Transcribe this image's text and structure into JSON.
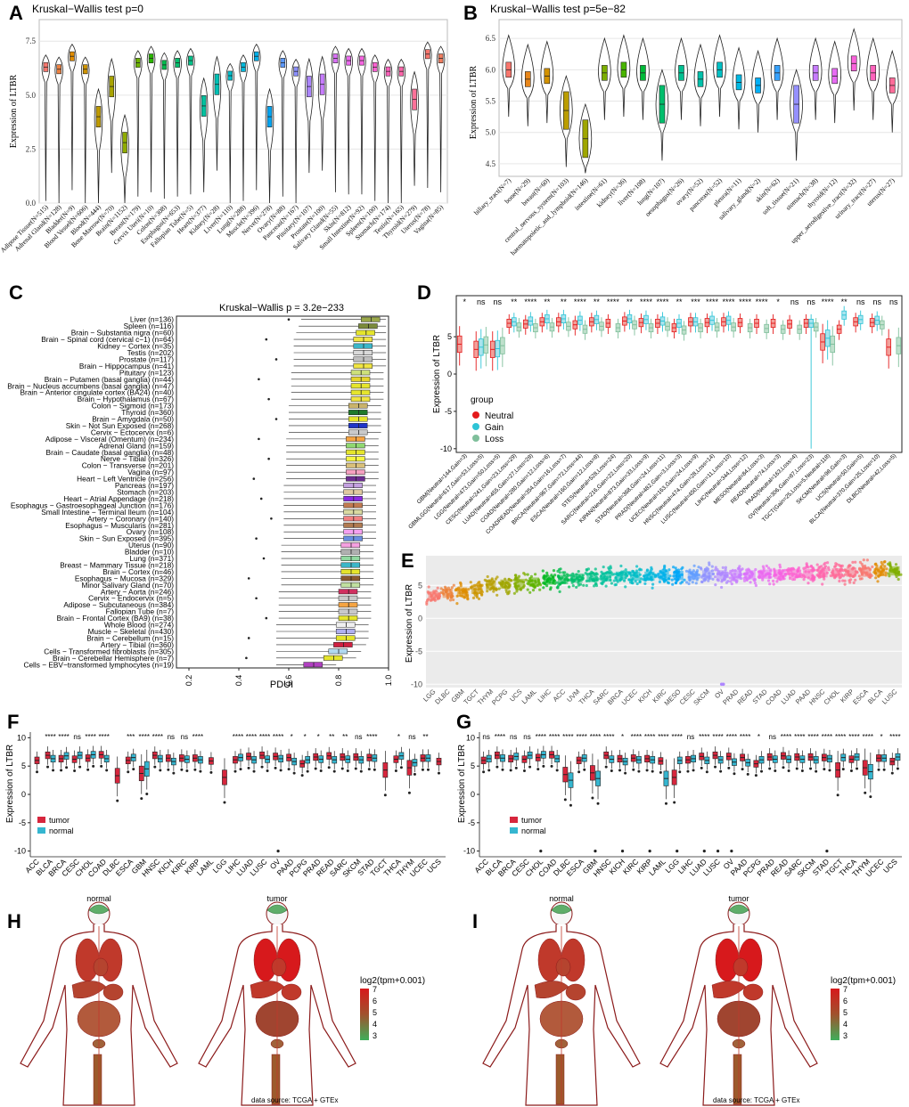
{
  "panels": {
    "A": {
      "letter": "A",
      "title": "Kruskal−Wallis test p=0",
      "ylabel": "Expression of LTBR",
      "ylim": [
        0,
        8.5
      ],
      "yticks": [
        "0.0",
        "2.5",
        "5.0",
        "7.5"
      ]
    },
    "B": {
      "letter": "B",
      "title": "Kruskal−Wallis test p=5e−82",
      "ylabel": "Expression of LTBR",
      "ylim": [
        4.3,
        6.8
      ],
      "yticks": [
        "4.5",
        "5.0",
        "5.5",
        "6.0",
        "6.5"
      ]
    },
    "C": {
      "letter": "C",
      "title": "Kruskal−Wallis p = 3.2e−233",
      "xlabel": "PDUI",
      "xlim": [
        0.15,
        1.0
      ],
      "xticks": [
        "0.2",
        "0.4",
        "0.6",
        "0.8",
        "1.0"
      ]
    },
    "D": {
      "letter": "D",
      "ylabel": "Expression of LTBR",
      "ylim": [
        -10,
        10
      ],
      "yticks": [
        "-10",
        "-5",
        "0",
        "5"
      ],
      "legend_title": "group",
      "legend_items": [
        "Neutral",
        "Gain",
        "Loss"
      ],
      "colors": [
        "#e41a1c",
        "#2ec4d6",
        "#7fbf9b"
      ]
    },
    "E": {
      "letter": "E",
      "ylabel": "Expression of LTBR",
      "ylim": [
        -10.5,
        9.5
      ],
      "yticks": [
        "-10",
        "-5",
        "0",
        "5"
      ]
    },
    "F": {
      "letter": "F",
      "ylabel": "Expression of LTBR",
      "ylim": [
        -11,
        11
      ],
      "yticks": [
        "-10",
        "-5",
        "0",
        "5",
        "10"
      ],
      "legend_items": [
        "tumor",
        "normal"
      ],
      "colors": [
        "#d7263d",
        "#35b6d0"
      ]
    },
    "G": {
      "letter": "G",
      "ylabel": "Expression of LTBR",
      "ylim": [
        -11,
        11
      ],
      "yticks": [
        "-10",
        "-5",
        "0",
        "5",
        "10"
      ],
      "legend_items": [
        "tumor",
        "normal"
      ],
      "colors": [
        "#d7263d",
        "#35b6d0"
      ]
    },
    "H": {
      "letter": "H",
      "normal_label": "normal",
      "tumor_label": "tumor",
      "legend_title": "log2(tpm+0.001)",
      "legend_ticks": [
        "7",
        "6",
        "5",
        "4",
        "3"
      ],
      "source": "data source: TCGA + GTEx"
    },
    "I": {
      "letter": "I",
      "normal_label": "normal",
      "tumor_label": "tumor",
      "legend_title": "log2(tpm+0.001)",
      "legend_ticks": [
        "7",
        "6",
        "5",
        "4",
        "3"
      ],
      "source": "data source: TCGA + GTEx"
    }
  },
  "chart_data": [
    {
      "panel": "A",
      "type": "violin",
      "title": "Kruskal−Wallis test p=0",
      "ylabel": "Expression of LTBR",
      "ylim": [
        0,
        8.5
      ],
      "categories": [
        "Adipose Tissue(N=515)",
        "Adrenal Gland(N=128)",
        "Bladder(N=9)",
        "Blood Vessel(N=606)",
        "Blood(N=444)",
        "Bone Marrow(N=70)",
        "Brain(N=1152)",
        "Breast(N=179)",
        "Cervix Uteri(N=10)",
        "Colon(N=308)",
        "Esophagus(N=653)",
        "Fallopian Tube(N=5)",
        "Heart(N=377)",
        "Kidney(N=28)",
        "Liver(N=110)",
        "Lung(N=288)",
        "Muscle(N=396)",
        "Nerve(N=278)",
        "Ovary(N=88)",
        "Pancreas(N=167)",
        "Pituitary(N=107)",
        "Prostate(N=100)",
        "Salivary Gland(N=55)",
        "Skin(N=812)",
        "Small Intestine(N=92)",
        "Spleen(N=100)",
        "Stomach(N=174)",
        "Testis(N=165)",
        "Thyroid(N=279)",
        "Uterus(N=78)",
        "Vagina(N=85)"
      ],
      "medians": [
        6.3,
        6.2,
        6.8,
        6.2,
        4.0,
        5.4,
        2.8,
        6.5,
        6.7,
        6.4,
        6.5,
        6.6,
        4.5,
        5.5,
        5.9,
        6.3,
        6.8,
        4.0,
        6.5,
        6.1,
        5.4,
        5.5,
        6.7,
        6.6,
        6.6,
        6.3,
        6.1,
        6.1,
        4.8,
        6.9,
        6.7
      ],
      "colors": [
        "#f8766d",
        "#ed8141",
        "#e08b00",
        "#d09400",
        "#bf9b00",
        "#a9a400",
        "#8fab00",
        "#6bb100",
        "#2ab700",
        "#00bb4e",
        "#00be6c",
        "#00c088",
        "#00c19f",
        "#00c0b5",
        "#00bdc9",
        "#00b7da",
        "#00afe8",
        "#00a5f3",
        "#5c99fb",
        "#8b8fff",
        "#ab85ff",
        "#c77cff",
        "#dc71fa",
        "#ec69ef",
        "#f763e0",
        "#fd61d1",
        "#ff62bc",
        "#ff65aa",
        "#fc7198",
        "#f8766d",
        "#f07d5f"
      ]
    },
    {
      "panel": "B",
      "type": "violin",
      "title": "Kruskal−Wallis test p=5e−82",
      "ylabel": "Expression of LTBR",
      "ylim": [
        4.3,
        6.8
      ],
      "categories": [
        "biliary_tract(N=7)",
        "bone(N=29)",
        "breast(N=60)",
        "central_nervous_system(N=103)",
        "haematopoietic_and_lymphoid(N=146)",
        "intestine(N=61)",
        "kidney(N=36)",
        "liver(N=108)",
        "lung(N=107)",
        "oesophagus(N=26)",
        "ovary(N=52)",
        "pancreas(N=52)",
        "pleura(N=11)",
        "salivary_gland(N=2)",
        "skin(N=62)",
        "soft_tissue(N=21)",
        "stomach(N=38)",
        "thyroid(N=12)",
        "upper_aerodigestive_tract(N=32)",
        "urinary_tract(N=27)",
        "uterus(N=27)"
      ],
      "medians": [
        6.0,
        5.85,
        5.9,
        5.35,
        4.9,
        5.95,
        6.0,
        5.95,
        5.45,
        5.95,
        5.85,
        6.0,
        5.8,
        5.75,
        5.95,
        5.45,
        5.95,
        5.9,
        6.1,
        5.95,
        5.75
      ],
      "colors": [
        "#f8766d",
        "#e7861a",
        "#d39200",
        "#bb9d00",
        "#9fa600",
        "#7cae00",
        "#49b500",
        "#00ba38",
        "#00be6c",
        "#00c091",
        "#00c1ab",
        "#00bfc4",
        "#00b9e3",
        "#00b0f6",
        "#35a2ff",
        "#9590ff",
        "#c77cff",
        "#e76bf3",
        "#fa62db",
        "#ff62bc",
        "#ff6c99"
      ]
    },
    {
      "panel": "C",
      "type": "boxplot-horizontal",
      "title": "Kruskal−Wallis p = 3.2e−233",
      "xlabel": "PDUI",
      "xlim": [
        0.15,
        1.0
      ],
      "categories": [
        "Liver (n=136)",
        "Spleen (n=116)",
        "Brain − Substantia nigra (n=60)",
        "Brain − Spinal cord (cervical c−1) (n=64)",
        "Kidney − Cortex (n=35)",
        "Testis (n=202)",
        "Prostate (n=117)",
        "Brain − Hippocampus (n=41)",
        "Pituitary (n=123)",
        "Brain − Putamen (basal ganglia) (n=44)",
        "Brain − Nucleus accumbens (basal ganglia) (n=47)",
        "Brain − Anterior cingulate cortex (BA24) (n=40)",
        "Brain − Hypothalamus (n=67)",
        "Colon − Sigmoid (n=173)",
        "Thyroid (n=360)",
        "Brain − Amygdala (n=50)",
        "Skin − Not Sun Exposed (n=268)",
        "Cervix − Ectocervix (n=6)",
        "Adipose − Visceral (Omentum) (n=234)",
        "Adrenal Gland (n=159)",
        "Brain − Caudate (basal ganglia) (n=48)",
        "Nerve − Tibial (n=326)",
        "Colon − Transverse (n=201)",
        "Vagina (n=97)",
        "Heart − Left Ventricle (n=256)",
        "Pancreas (n=197)",
        "Stomach (n=203)",
        "Heart − Atrial Appendage (n=218)",
        "Esophagus − Gastroesophageal Junction (n=176)",
        "Small Intestine − Terminal Ileum (n=104)",
        "Artery − Coronary (n=140)",
        "Esophagus − Muscularis (n=281)",
        "Ovary (n=108)",
        "Skin − Sun Exposed (n=395)",
        "Uterus (n=90)",
        "Bladder (n=10)",
        "Lung (n=371)",
        "Breast − Mammary Tissue (n=218)",
        "Brain − Cortex (n=46)",
        "Esophagus − Mucosa (n=329)",
        "Minor Salivary Gland (n=70)",
        "Artery − Aorta (n=246)",
        "Cervix − Endocervix (n=5)",
        "Adipose − Subcutaneous (n=384)",
        "Fallopian Tube (n=7)",
        "Brain − Frontal Cortex (BA9) (n=38)",
        "Whole Blood (n=274)",
        "Muscle − Skeletal (n=430)",
        "Brain − Cerebellum (n=15)",
        "Artery − Tibial (n=360)",
        "Cells − Transformed fibroblasts (n=305)",
        "Brain − Cerebellar Hemisphere (n=7)",
        "Cells − EBV−transformed lymphocytes (n=19)"
      ],
      "medians": [
        0.93,
        0.92,
        0.91,
        0.9,
        0.9,
        0.9,
        0.9,
        0.9,
        0.89,
        0.89,
        0.89,
        0.89,
        0.89,
        0.88,
        0.88,
        0.88,
        0.88,
        0.88,
        0.87,
        0.87,
        0.87,
        0.87,
        0.87,
        0.87,
        0.87,
        0.86,
        0.86,
        0.86,
        0.86,
        0.86,
        0.86,
        0.86,
        0.86,
        0.86,
        0.85,
        0.85,
        0.85,
        0.85,
        0.85,
        0.85,
        0.85,
        0.84,
        0.84,
        0.84,
        0.84,
        0.84,
        0.83,
        0.83,
        0.83,
        0.82,
        0.8,
        0.78,
        0.7
      ]
    },
    {
      "panel": "D",
      "type": "boxplot-grouped",
      "ylabel": "Expression of LTBR",
      "ylim": [
        -10,
        10
      ],
      "categories": [
        "GBM(Neutral=144,Gain=3)",
        "GBMLGG(Neutral=617,Gain=53,Loss=5)",
        "LGG(Neutral=473,Gain=50,Loss=5)",
        "CESC(Neutral=241,Gain=23,Loss=29)",
        "LUAD(Neutral=455,Gain=27,Loss=28)",
        "COAD(Neutral=280,Gain=12,Loss=6)",
        "COADREAD(Neutral=354,Gain=16,Loss=7)",
        "BRCA(Neutral=967,Gain=72,Loss=44)",
        "ESCA(Neutral=160,Gain=12,Loss=8)",
        "STES(Neutral=528,Loss=24)",
        "SARC(Neutral=216,Gain=22,Loss=20)",
        "KIPAN(Neutral=873,Gain=33,Loss=9)",
        "STAD(Neutral=368,Gain=24,Loss=11)",
        "PRAD(Neutral=482,Gain=3,Loss=3)",
        "UCEC(Neutral=163,Gain=24,Loss=9)",
        "HNSC(Neutral=474,Gain=28,Loss=14)",
        "LUSC(Neutral=450,Gain=11,Loss=10)",
        "LIHC(Neutral=344,Loss=12)",
        "MESO(Neutral=84,Loss=3)",
        "READ(Neutral=74,Loss=3)",
        "PAAD(Neutral=163,Loss=4)",
        "OV(Neutral=306,Gain=87,Loss=23)",
        "TGCT(Gain=25,Loss=5,Neutral=118)",
        "SKCM(Neutral=98,Gain=3)",
        "UCS(Neutral=50,Gain=5)",
        "BLCA(Neutral=370,Gain=25,Loss=10)",
        "DLBC(Neutral=42,Loss=5)"
      ],
      "significance": [
        "*",
        "ns",
        "ns",
        "**",
        "****",
        "**",
        "**",
        "****",
        "**",
        "****",
        "**",
        "****",
        "****",
        "**",
        "***",
        "****",
        "****",
        "****",
        "****",
        "*",
        "ns",
        "ns",
        "****",
        "**",
        "ns",
        "ns",
        "ns"
      ],
      "series": [
        {
          "name": "Neutral",
          "values": [
            4.0,
            3.3,
            3.3,
            6.8,
            6.7,
            7.0,
            7.0,
            6.6,
            7.0,
            6.8,
            7.1,
            6.9,
            6.8,
            6.2,
            7.0,
            6.9,
            7.0,
            6.9,
            6.8,
            6.8,
            6.7,
            6.8,
            4.3,
            6.0,
            7.0,
            6.9,
            3.6
          ]
        },
        {
          "name": "Gain",
          "values": [
            null,
            3.6,
            3.4,
            7.0,
            7.1,
            7.4,
            7.4,
            7.2,
            7.3,
            null,
            7.4,
            7.3,
            7.1,
            6.8,
            7.0,
            7.2,
            7.2,
            null,
            null,
            null,
            null,
            6.8,
            4.8,
            7.9,
            7.3,
            7.2,
            null
          ]
        },
        {
          "name": "Loss",
          "values": [
            null,
            3.9,
            3.8,
            6.3,
            6.2,
            6.3,
            6.4,
            6.0,
            6.4,
            6.2,
            6.6,
            6.2,
            6.4,
            5.9,
            6.2,
            6.3,
            6.3,
            6.2,
            6.1,
            6.0,
            6.0,
            6.3,
            4.0,
            null,
            null,
            6.6,
            3.8
          ]
        }
      ]
    },
    {
      "panel": "E",
      "type": "scatter-strip",
      "ylabel": "Expression of LTBR",
      "ylim": [
        -10.5,
        9.5
      ],
      "categories": [
        "LGG",
        "DLBC",
        "GBM",
        "TGCT",
        "THYM",
        "PCPG",
        "UCS",
        "LAML",
        "LIHC",
        "ACC",
        "UVM",
        "THCA",
        "SARC",
        "BRCA",
        "UCEC",
        "KICH",
        "KIRC",
        "MESO",
        "CESC",
        "SKCM",
        "OV",
        "PRAD",
        "READ",
        "STAD",
        "COAD",
        "LUAD",
        "PAAD",
        "HNSC",
        "CHOL",
        "KIRP",
        "ESCA",
        "BLCA",
        "LUSC"
      ],
      "medians": [
        3.4,
        3.8,
        4.0,
        4.4,
        5.0,
        5.2,
        5.3,
        5.5,
        5.8,
        5.9,
        6.1,
        6.2,
        6.3,
        6.4,
        6.4,
        6.4,
        6.5,
        6.5,
        6.5,
        6.6,
        6.6,
        6.6,
        6.6,
        6.7,
        6.7,
        6.8,
        6.8,
        6.9,
        6.9,
        7.0,
        7.0,
        7.1,
        7.2
      ],
      "colors": [
        "#f8766d",
        "#ec8239",
        "#de8c00",
        "#cc9600",
        "#b79f00",
        "#a0a600",
        "#84ad00",
        "#5eb300",
        "#00b81f",
        "#00bb4e",
        "#00be6c",
        "#00c085",
        "#00c19c",
        "#00c0b2",
        "#00bdc7",
        "#00b8da",
        "#00b0ea",
        "#00a6f7",
        "#619cff",
        "#8f92ff",
        "#ae87ff",
        "#c77cff",
        "#db72fb",
        "#eb68f0",
        "#f663e2",
        "#fd61d2",
        "#ff62bf",
        "#ff65ac",
        "#ff6998",
        "#fb6f85",
        "#f8766d",
        "#e28a00",
        "#7fae00"
      ]
    },
    {
      "panel": "F",
      "type": "boxplot-paired",
      "ylabel": "Expression of LTBR",
      "ylim": [
        -11,
        11
      ],
      "categories": [
        "ACC",
        "BLCA",
        "BRCA",
        "CESC",
        "CHOL",
        "COAD",
        "DLBC",
        "ESCA",
        "GBM",
        "HNSC",
        "KICH",
        "KIRC",
        "KIRP",
        "LAML",
        "LGG",
        "LIHC",
        "LUAD",
        "LUSC",
        "OV",
        "PAAD",
        "PCPG",
        "PRAD",
        "READ",
        "SARC",
        "SKCM",
        "STAD",
        "TGCT",
        "THCA",
        "THYM",
        "UCEC",
        "UCS"
      ],
      "significance": [
        "",
        "****",
        "****",
        "ns",
        "****",
        "****",
        "",
        "***",
        "****",
        "****",
        "ns",
        "ns",
        "****",
        "",
        "",
        "****",
        "****",
        "****",
        "****",
        "*",
        "*",
        "*",
        "**",
        "**",
        "ns",
        "****",
        "",
        "*",
        "ns",
        "**",
        ""
      ],
      "series": [
        {
          "name": "tumor",
          "values": [
            6.0,
            6.9,
            6.3,
            6.2,
            6.4,
            7.0,
            3.3,
            6.0,
            3.7,
            6.9,
            6.4,
            6.4,
            6.4,
            5.9,
            3.0,
            6.1,
            6.7,
            6.9,
            6.7,
            6.5,
            5.4,
            6.6,
            6.8,
            6.6,
            6.6,
            6.5,
            4.3,
            6.2,
            4.7,
            6.4,
            5.8
          ]
        },
        {
          "name": "normal",
          "values": [
            null,
            6.3,
            6.8,
            6.9,
            7.0,
            6.3,
            null,
            6.5,
            4.5,
            6.3,
            5.8,
            6.2,
            6.1,
            null,
            null,
            6.5,
            6.1,
            6.2,
            6.3,
            5.8,
            6.1,
            6.2,
            6.1,
            6.2,
            6.1,
            6.4,
            null,
            6.8,
            5.6,
            6.4,
            null
          ]
        }
      ]
    },
    {
      "panel": "G",
      "type": "boxplot-paired",
      "ylabel": "Expression of LTBR",
      "ylim": [
        -11,
        11
      ],
      "categories": [
        "ACC",
        "BLCA",
        "BRCA",
        "CESC",
        "CHOL",
        "COAD",
        "DLBC",
        "ESCA",
        "GBM",
        "HNSC",
        "KICH",
        "KIRC",
        "KIRP",
        "LAML",
        "LGG",
        "LIHC",
        "LUAD",
        "LUSC",
        "OV",
        "PAAD",
        "PCPG",
        "PRAD",
        "READ",
        "SARC",
        "SKCM",
        "STAD",
        "TGCT",
        "THCA",
        "THYM",
        "UCEC",
        "UCS"
      ],
      "significance": [
        "ns",
        "****",
        "ns",
        "ns",
        "****",
        "****",
        "****",
        "****",
        "****",
        "****",
        "*",
        "****",
        "****",
        "****",
        "****",
        "ns",
        "****",
        "****",
        "****",
        "****",
        "*",
        "ns",
        "****",
        "****",
        "****",
        "****",
        "****",
        "****",
        "****",
        "*",
        "****"
      ],
      "series": [
        {
          "name": "tumor",
          "values": [
            6.0,
            6.9,
            6.3,
            6.2,
            6.5,
            7.0,
            3.5,
            6.0,
            3.8,
            6.9,
            6.3,
            6.4,
            6.3,
            5.9,
            3.0,
            6.1,
            6.7,
            6.9,
            6.7,
            6.5,
            5.4,
            6.6,
            6.8,
            6.6,
            6.6,
            6.5,
            4.3,
            6.2,
            4.7,
            6.4,
            5.8
          ]
        },
        {
          "name": "normal",
          "values": [
            6.3,
            6.4,
            6.7,
            6.9,
            7.0,
            6.3,
            2.5,
            6.4,
            2.8,
            6.2,
            5.8,
            6.1,
            6.1,
            2.8,
            6.0,
            6.3,
            6.0,
            6.1,
            5.7,
            5.6,
            6.1,
            6.2,
            6.2,
            6.2,
            6.1,
            6.3,
            6.5,
            6.6,
            4.0,
            6.4,
            6.6
          ]
        }
      ]
    }
  ]
}
